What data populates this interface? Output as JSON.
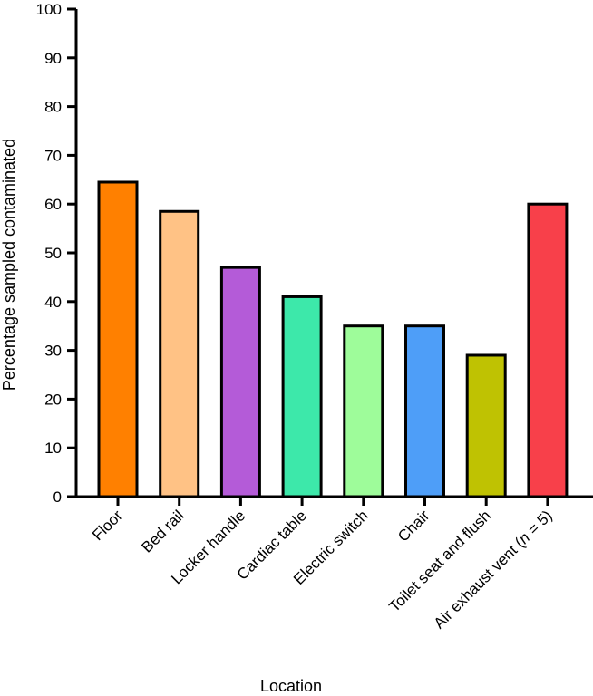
{
  "chart_data": {
    "type": "bar",
    "title": "",
    "xlabel": "Location",
    "ylabel": "Percentage sampled contaminated",
    "ylim": [
      0,
      100
    ],
    "yticks": [
      0,
      10,
      20,
      30,
      40,
      50,
      60,
      70,
      80,
      90,
      100
    ],
    "grid": false,
    "legend": "none",
    "categories": [
      "Floor",
      "Bed rail",
      "Locker handle",
      "Cardiac table",
      "Electric switch",
      "Chair",
      "Toilet seat and flush",
      "Air exhaust vent (n = 5)"
    ],
    "values": [
      64.5,
      58.5,
      47,
      41,
      35,
      35,
      29,
      60
    ],
    "colors": [
      "#FF8000",
      "#FFC285",
      "#B45BD8",
      "#3DE8AA",
      "#9EFC9A",
      "#4E9EF8",
      "#BFC202",
      "#F8404A"
    ]
  }
}
